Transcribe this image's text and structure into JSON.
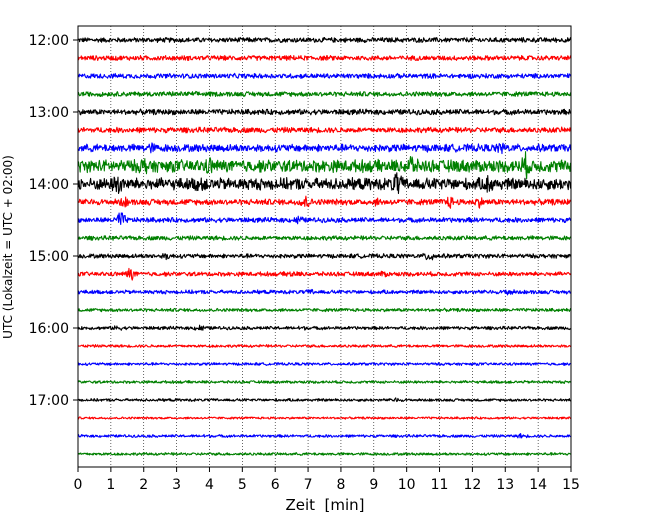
{
  "chart_data": {
    "type": "line",
    "subtype": "helicorder",
    "xlabel": "Zeit  [min]",
    "ylabel": "UTC (Lokalzeit = UTC + 02:00)",
    "xlim": [
      0,
      15
    ],
    "x_ticks": [
      0,
      1,
      2,
      3,
      4,
      5,
      6,
      7,
      8,
      9,
      10,
      11,
      12,
      13,
      14,
      15
    ],
    "x_tick_labels": [
      "0",
      "1",
      "2",
      "3",
      "4",
      "5",
      "6",
      "7",
      "8",
      "9",
      "10",
      "11",
      "12",
      "13",
      "14",
      "15"
    ],
    "vertical_gridlines": "dotted, every minute",
    "trace_interval_minutes": 15,
    "trace_start_times": [
      "12:00",
      "12:15",
      "12:30",
      "12:45",
      "13:00",
      "13:15",
      "13:30",
      "13:45",
      "14:00",
      "14:15",
      "14:30",
      "14:45",
      "15:00",
      "15:15",
      "15:30",
      "15:45",
      "16:00",
      "16:15",
      "16:30",
      "16:45",
      "17:00",
      "17:15",
      "17:30",
      "17:45"
    ],
    "y_tick_labels": [
      "12:00",
      "13:00",
      "14:00",
      "15:00",
      "16:00",
      "17:00"
    ],
    "color_cycle": [
      "#000000",
      "#ff0000",
      "#0000ff",
      "#008000"
    ],
    "relative_amplitude": [
      0.9,
      0.9,
      0.9,
      0.9,
      1.0,
      1.0,
      1.4,
      2.3,
      2.2,
      1.1,
      0.9,
      0.8,
      0.8,
      0.8,
      0.7,
      0.6,
      0.6,
      0.5,
      0.5,
      0.5,
      0.5,
      0.4,
      0.5,
      0.5
    ],
    "bursts": [
      [],
      [],
      [],
      [],
      [],
      [],
      [
        [
          2.2,
          1.6
        ],
        [
          12.9,
          1.8
        ]
      ],
      [
        [
          10.1,
          2.2
        ],
        [
          13.6,
          2.2
        ],
        [
          2.0,
          1.6
        ],
        [
          4.0,
          1.5
        ]
      ],
      [
        [
          1.2,
          2.3
        ],
        [
          9.7,
          2.3
        ],
        [
          3.7,
          1.6
        ],
        [
          12.5,
          1.8
        ]
      ],
      [
        [
          6.9,
          3.2
        ],
        [
          11.3,
          2.4
        ],
        [
          12.2,
          2.0
        ],
        [
          9.1,
          1.5
        ],
        [
          1.4,
          2.0
        ]
      ],
      [
        [
          1.3,
          4.0
        ],
        [
          6.7,
          2.0
        ]
      ],
      [],
      [
        [
          10.7,
          3.2
        ],
        [
          2.7,
          1.8
        ]
      ],
      [
        [
          1.6,
          3.3
        ],
        [
          6.5,
          1.8
        ],
        [
          9.3,
          1.6
        ]
      ],
      [
        [
          13.1,
          2.4
        ],
        [
          7.1,
          1.6
        ]
      ],
      [],
      [
        [
          3.7,
          2.5
        ],
        [
          1.2,
          1.8
        ],
        [
          6.8,
          1.6
        ]
      ],
      [],
      [],
      [],
      [
        [
          9.7,
          1.8
        ]
      ],
      [],
      [
        [
          13.5,
          2.0
        ],
        [
          3.9,
          1.6
        ]
      ],
      []
    ]
  }
}
